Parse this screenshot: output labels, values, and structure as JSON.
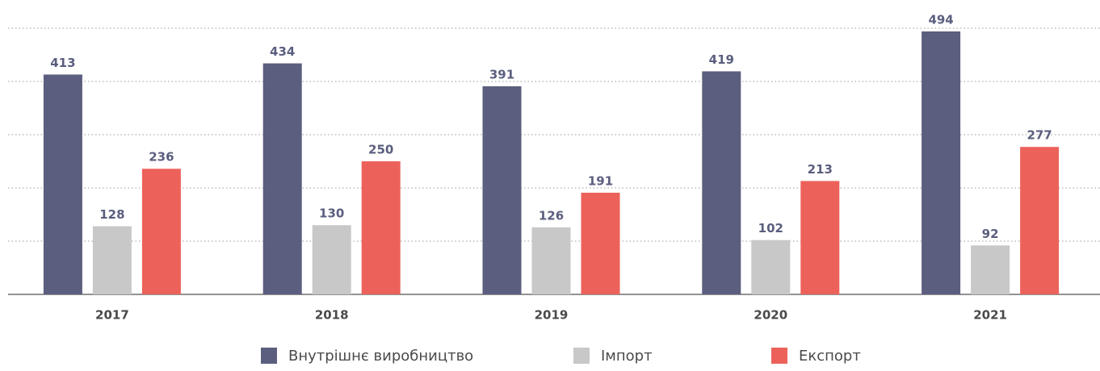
{
  "chart_data": {
    "type": "bar",
    "categories": [
      "2017",
      "2018",
      "2019",
      "2020",
      "2021"
    ],
    "series": [
      {
        "name": "Внутрішнє виробництво",
        "color": "#5b5e7e",
        "values": [
          413,
          434,
          391,
          419,
          494
        ]
      },
      {
        "name": "Імпорт",
        "color": "#c8c8c8",
        "values": [
          128,
          130,
          126,
          102,
          92
        ]
      },
      {
        "name": "Експорт",
        "color": "#ec625a",
        "values": [
          236,
          250,
          191,
          213,
          277
        ]
      }
    ],
    "ylim": [
      0,
      500
    ],
    "yticks": [
      100,
      200,
      300,
      400,
      500
    ],
    "grid": true,
    "legend": "bottom"
  }
}
